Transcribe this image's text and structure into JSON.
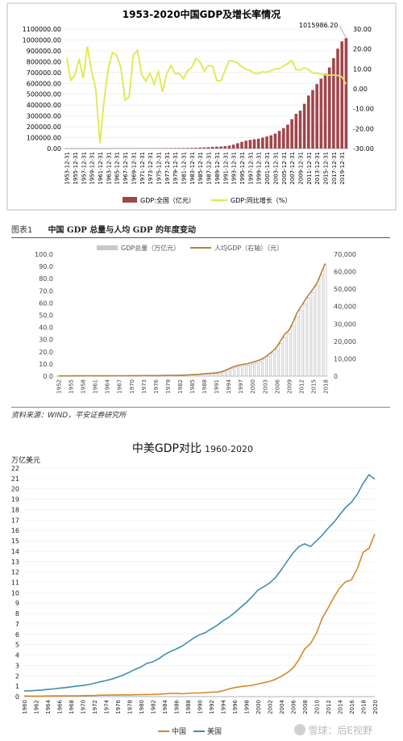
{
  "chart_data": [
    {
      "type": "bar",
      "title": "1953-2020中国GDP及增长率情况",
      "categories": [
        "1953-12-31",
        "1954-12-31",
        "1955-12-31",
        "1956-12-31",
        "1957-12-31",
        "1958-12-31",
        "1959-12-31",
        "1960-12-31",
        "1961-12-31",
        "1962-12-31",
        "1963-12-31",
        "1964-12-31",
        "1965-12-31",
        "1966-12-31",
        "1967-12-31",
        "1968-12-31",
        "1969-12-31",
        "1970-12-31",
        "1971-12-31",
        "1972-12-31",
        "1973-12-31",
        "1974-12-31",
        "1975-12-31",
        "1976-12-31",
        "1977-12-31",
        "1978-12-31",
        "1979-12-31",
        "1980-12-31",
        "1981-12-31",
        "1982-12-31",
        "1983-12-31",
        "1984-12-31",
        "1985-12-31",
        "1986-12-31",
        "1987-12-31",
        "1988-12-31",
        "1989-12-31",
        "1990-12-31",
        "1991-12-31",
        "1992-12-31",
        "1993-12-31",
        "1994-12-31",
        "1995-12-31",
        "1996-12-31",
        "1997-12-31",
        "1998-12-31",
        "1999-12-31",
        "2000-12-31",
        "2001-12-31",
        "2002-12-31",
        "2003-12-31",
        "2004-12-31",
        "2005-12-31",
        "2006-12-31",
        "2007-12-31",
        "2008-12-31",
        "2009-12-31",
        "2010-12-31",
        "2011-12-31",
        "2012-12-31",
        "2013-12-31",
        "2014-12-31",
        "2015-12-31",
        "2016-12-31",
        "2017-12-31",
        "2018-12-31",
        "2019-12-31",
        "2020-12-31"
      ],
      "tick_labels": [
        "1953-12-31",
        "1955-12-31",
        "1957-12-31",
        "1959-12-31",
        "1961-12-31",
        "1963-12-31",
        "1965-12-31",
        "1967-12-31",
        "1969-12-31",
        "1971-12-31",
        "1973-12-31",
        "1975-12-31",
        "1977-12-31",
        "1979-12-31",
        "1981-12-31",
        "1983-12-31",
        "1985-12-31",
        "1987-12-31",
        "1989-12-31",
        "1991-12-31",
        "1993-12-31",
        "1995-12-31",
        "1997-12-31",
        "1999-12-31",
        "2001-12-31",
        "2003-12-31",
        "2005-12-31",
        "2007-12-31",
        "2009-12-31",
        "2011-12-31",
        "2013-12-31",
        "2015-12-31",
        "2017-12-31",
        "2019-12-31"
      ],
      "series": [
        {
          "name": "GDP:全国（亿元）",
          "type": "bar",
          "axis": "left",
          "color": "#a0464b",
          "values": [
            824,
            859,
            911,
            1030,
            1071,
            1312,
            1447,
            1470,
            1232,
            1162,
            1248,
            1456,
            1717,
            1873,
            1780,
            1730,
            1946,
            2262,
            2435,
            2530,
            2733,
            2803,
            3013,
            2961,
            3221,
            3679,
            4101,
            4588,
            4936,
            5373,
            6021,
            7279,
            9099,
            10376,
            12175,
            15180,
            17180,
            18873,
            22006,
            27195,
            35673,
            48638,
            61340,
            71814,
            79715,
            85196,
            90564,
            100280,
            110863,
            121717,
            137422,
            161840,
            187319,
            219439,
            270092,
            319245,
            348518,
            412119,
            487940,
            538580,
            592963,
            643563,
            688858,
            746395,
            832036,
            919281,
            986515,
            1015986
          ]
        },
        {
          "name": "GDP:同比增长（%）",
          "type": "line",
          "axis": "right",
          "color": "#e0e84a",
          "values": [
            15.6,
            4.2,
            6.8,
            15.0,
            5.1,
            21.3,
            9.0,
            0.0,
            -27.3,
            -5.6,
            10.3,
            18.2,
            17.0,
            10.7,
            -5.7,
            -4.1,
            16.9,
            19.3,
            7.1,
            3.8,
            7.8,
            2.3,
            8.7,
            -1.6,
            7.6,
            11.7,
            7.6,
            7.8,
            5.1,
            9.0,
            10.8,
            15.2,
            13.4,
            8.9,
            11.7,
            11.2,
            4.2,
            3.9,
            9.3,
            14.2,
            13.9,
            13.0,
            11.0,
            9.9,
            9.2,
            7.8,
            7.7,
            8.5,
            8.3,
            9.1,
            10.0,
            10.1,
            11.4,
            12.7,
            14.2,
            9.7,
            9.4,
            10.6,
            9.6,
            7.9,
            7.8,
            7.4,
            7.0,
            6.8,
            6.9,
            6.7,
            6.0,
            2.3
          ]
        }
      ],
      "ylim_left": [
        0,
        1100000
      ],
      "ylim_right": [
        -30,
        30
      ],
      "left_ticks": [
        "0.00",
        "100000.00",
        "200000.00",
        "300000.00",
        "400000.00",
        "500000.00",
        "600000.00",
        "700000.00",
        "800000.00",
        "900000.00",
        "1000000.00",
        "1100000.00"
      ],
      "right_ticks": [
        "-30.00",
        "-20.00",
        "-10.00",
        "0.00",
        "10.00",
        "20.00",
        "30.00"
      ],
      "annotation": "1015986.20",
      "legend_position": "bottom"
    },
    {
      "type": "bar",
      "caption_label": "图表1",
      "title": "中国 GDP 总量与人均 GDP 的年度变动",
      "source": "资料来源：WIND，平安证券研究所",
      "categories": [
        1952,
        1953,
        1954,
        1955,
        1956,
        1957,
        1958,
        1959,
        1960,
        1961,
        1962,
        1963,
        1964,
        1965,
        1966,
        1967,
        1968,
        1969,
        1970,
        1971,
        1972,
        1973,
        1974,
        1975,
        1976,
        1977,
        1978,
        1979,
        1980,
        1981,
        1982,
        1983,
        1984,
        1985,
        1986,
        1987,
        1988,
        1989,
        1990,
        1991,
        1992,
        1993,
        1994,
        1995,
        1996,
        1997,
        1998,
        1999,
        2000,
        2001,
        2002,
        2003,
        2004,
        2005,
        2006,
        2007,
        2008,
        2009,
        2010,
        2011,
        2012,
        2013,
        2014,
        2015,
        2016,
        2017,
        2018
      ],
      "tick_labels": [
        "1952",
        "1955",
        "1958",
        "1961",
        "1964",
        "1967",
        "1970",
        "1973",
        "1976",
        "1979",
        "1982",
        "1985",
        "1988",
        "1991",
        "1994",
        "1997",
        "2000",
        "2003",
        "2006",
        "2009",
        "2012",
        "2015",
        "2018"
      ],
      "series": [
        {
          "name": "GDP总量（万亿元）",
          "type": "bar",
          "axis": "left",
          "color": "#c8c8c8",
          "values": [
            0.07,
            0.08,
            0.09,
            0.09,
            0.1,
            0.11,
            0.13,
            0.14,
            0.15,
            0.12,
            0.12,
            0.12,
            0.15,
            0.17,
            0.19,
            0.18,
            0.17,
            0.19,
            0.23,
            0.24,
            0.25,
            0.27,
            0.28,
            0.3,
            0.3,
            0.32,
            0.37,
            0.41,
            0.46,
            0.49,
            0.54,
            0.6,
            0.73,
            0.91,
            1.04,
            1.22,
            1.52,
            1.72,
            1.89,
            2.2,
            2.72,
            3.57,
            4.86,
            6.13,
            7.18,
            7.97,
            8.52,
            9.06,
            10.03,
            11.09,
            12.17,
            13.74,
            16.18,
            18.73,
            21.94,
            27.01,
            31.92,
            34.85,
            41.21,
            48.79,
            53.86,
            59.3,
            64.36,
            68.89,
            74.64,
            83.2,
            91.93
          ]
        },
        {
          "name": "人均GDP（右轴）（元）",
          "type": "line",
          "axis": "right",
          "color": "#b5803a",
          "values": [
            119,
            144,
            144,
            150,
            166,
            168,
            200,
            216,
            218,
            185,
            173,
            181,
            208,
            240,
            254,
            235,
            222,
            241,
            279,
            292,
            292,
            309,
            310,
            324,
            316,
            339,
            385,
            423,
            468,
            497,
            533,
            588,
            702,
            866,
            973,
            1123,
            1378,
            1536,
            1663,
            1912,
            2334,
            3027,
            4081,
            5091,
            5898,
            6481,
            6860,
            7229,
            7942,
            8717,
            9506,
            10666,
            12487,
            14368,
            16738,
            20494,
            24100,
            26180,
            30808,
            36302,
            39874,
            43684,
            47005,
            50028,
            53680,
            59201,
            64644
          ]
        }
      ],
      "ylim_left": [
        0,
        100
      ],
      "ylim_right": [
        0,
        70000
      ],
      "left_ticks": [
        "0.0",
        "10.0",
        "20.0",
        "30.0",
        "40.0",
        "50.0",
        "60.0",
        "70.0",
        "80.0",
        "90.0",
        "100.0"
      ],
      "right_ticks": [
        "0",
        "10,000",
        "20,000",
        "30,000",
        "40,000",
        "50,000",
        "60,000",
        "70,000"
      ],
      "legend_position": "top"
    },
    {
      "type": "line",
      "title": "中美GDP对比",
      "subtitle": "1960-2020",
      "ylabel": "万亿美元",
      "x": [
        1960,
        1961,
        1962,
        1963,
        1964,
        1965,
        1966,
        1967,
        1968,
        1969,
        1970,
        1971,
        1972,
        1973,
        1974,
        1975,
        1976,
        1977,
        1978,
        1979,
        1980,
        1981,
        1982,
        1983,
        1984,
        1985,
        1986,
        1987,
        1988,
        1989,
        1990,
        1991,
        1992,
        1993,
        1994,
        1995,
        1996,
        1997,
        1998,
        1999,
        2000,
        2001,
        2002,
        2003,
        2004,
        2005,
        2006,
        2007,
        2008,
        2009,
        2010,
        2011,
        2012,
        2013,
        2014,
        2015,
        2016,
        2017,
        2018,
        2019,
        2020
      ],
      "tick_labels": [
        "1960",
        "1962",
        "1964",
        "1966",
        "1968",
        "1970",
        "1972",
        "1974",
        "1976",
        "1978",
        "1980",
        "1982",
        "1984",
        "1986",
        "1988",
        "1990",
        "1992",
        "1994",
        "1996",
        "1998",
        "2000",
        "2002",
        "2004",
        "2006",
        "2008",
        "2010",
        "2012",
        "2014",
        "2016",
        "2018",
        "2020"
      ],
      "series": [
        {
          "name": "中国",
          "color": "#d4892a",
          "values": [
            0.06,
            0.05,
            0.05,
            0.05,
            0.06,
            0.07,
            0.08,
            0.07,
            0.07,
            0.08,
            0.09,
            0.1,
            0.11,
            0.14,
            0.14,
            0.16,
            0.15,
            0.17,
            0.15,
            0.18,
            0.19,
            0.2,
            0.21,
            0.23,
            0.26,
            0.31,
            0.3,
            0.27,
            0.31,
            0.35,
            0.36,
            0.38,
            0.43,
            0.44,
            0.56,
            0.73,
            0.86,
            0.96,
            1.03,
            1.09,
            1.21,
            1.34,
            1.47,
            1.66,
            1.96,
            2.29,
            2.75,
            3.55,
            4.59,
            5.1,
            6.09,
            7.55,
            8.53,
            9.57,
            10.48,
            11.06,
            11.23,
            12.31,
            13.89,
            14.28,
            15.66
          ]
        },
        {
          "name": "美国",
          "color": "#3d8fb0",
          "values": [
            0.54,
            0.56,
            0.6,
            0.64,
            0.69,
            0.74,
            0.81,
            0.86,
            0.94,
            1.02,
            1.07,
            1.16,
            1.28,
            1.43,
            1.55,
            1.69,
            1.88,
            2.09,
            2.35,
            2.63,
            2.86,
            3.21,
            3.34,
            3.64,
            4.04,
            4.34,
            4.58,
            4.86,
            5.24,
            5.64,
            5.96,
            6.16,
            6.52,
            6.86,
            7.29,
            7.64,
            8.07,
            8.58,
            9.06,
            9.63,
            10.25,
            10.58,
            10.94,
            11.46,
            12.21,
            13.04,
            13.82,
            14.45,
            14.71,
            14.45,
            14.99,
            15.54,
            16.2,
            16.78,
            17.52,
            18.22,
            18.71,
            19.49,
            20.53,
            21.37,
            20.94
          ]
        }
      ],
      "ylim": [
        0,
        22
      ],
      "y_ticks": [
        "0",
        "1",
        "2",
        "3",
        "4",
        "5",
        "6",
        "7",
        "8",
        "9",
        "10",
        "11",
        "12",
        "13",
        "14",
        "15",
        "16",
        "17",
        "18",
        "19",
        "20",
        "21",
        "22"
      ],
      "legend_position": "bottom",
      "watermark": "雪球：后E视野"
    }
  ]
}
